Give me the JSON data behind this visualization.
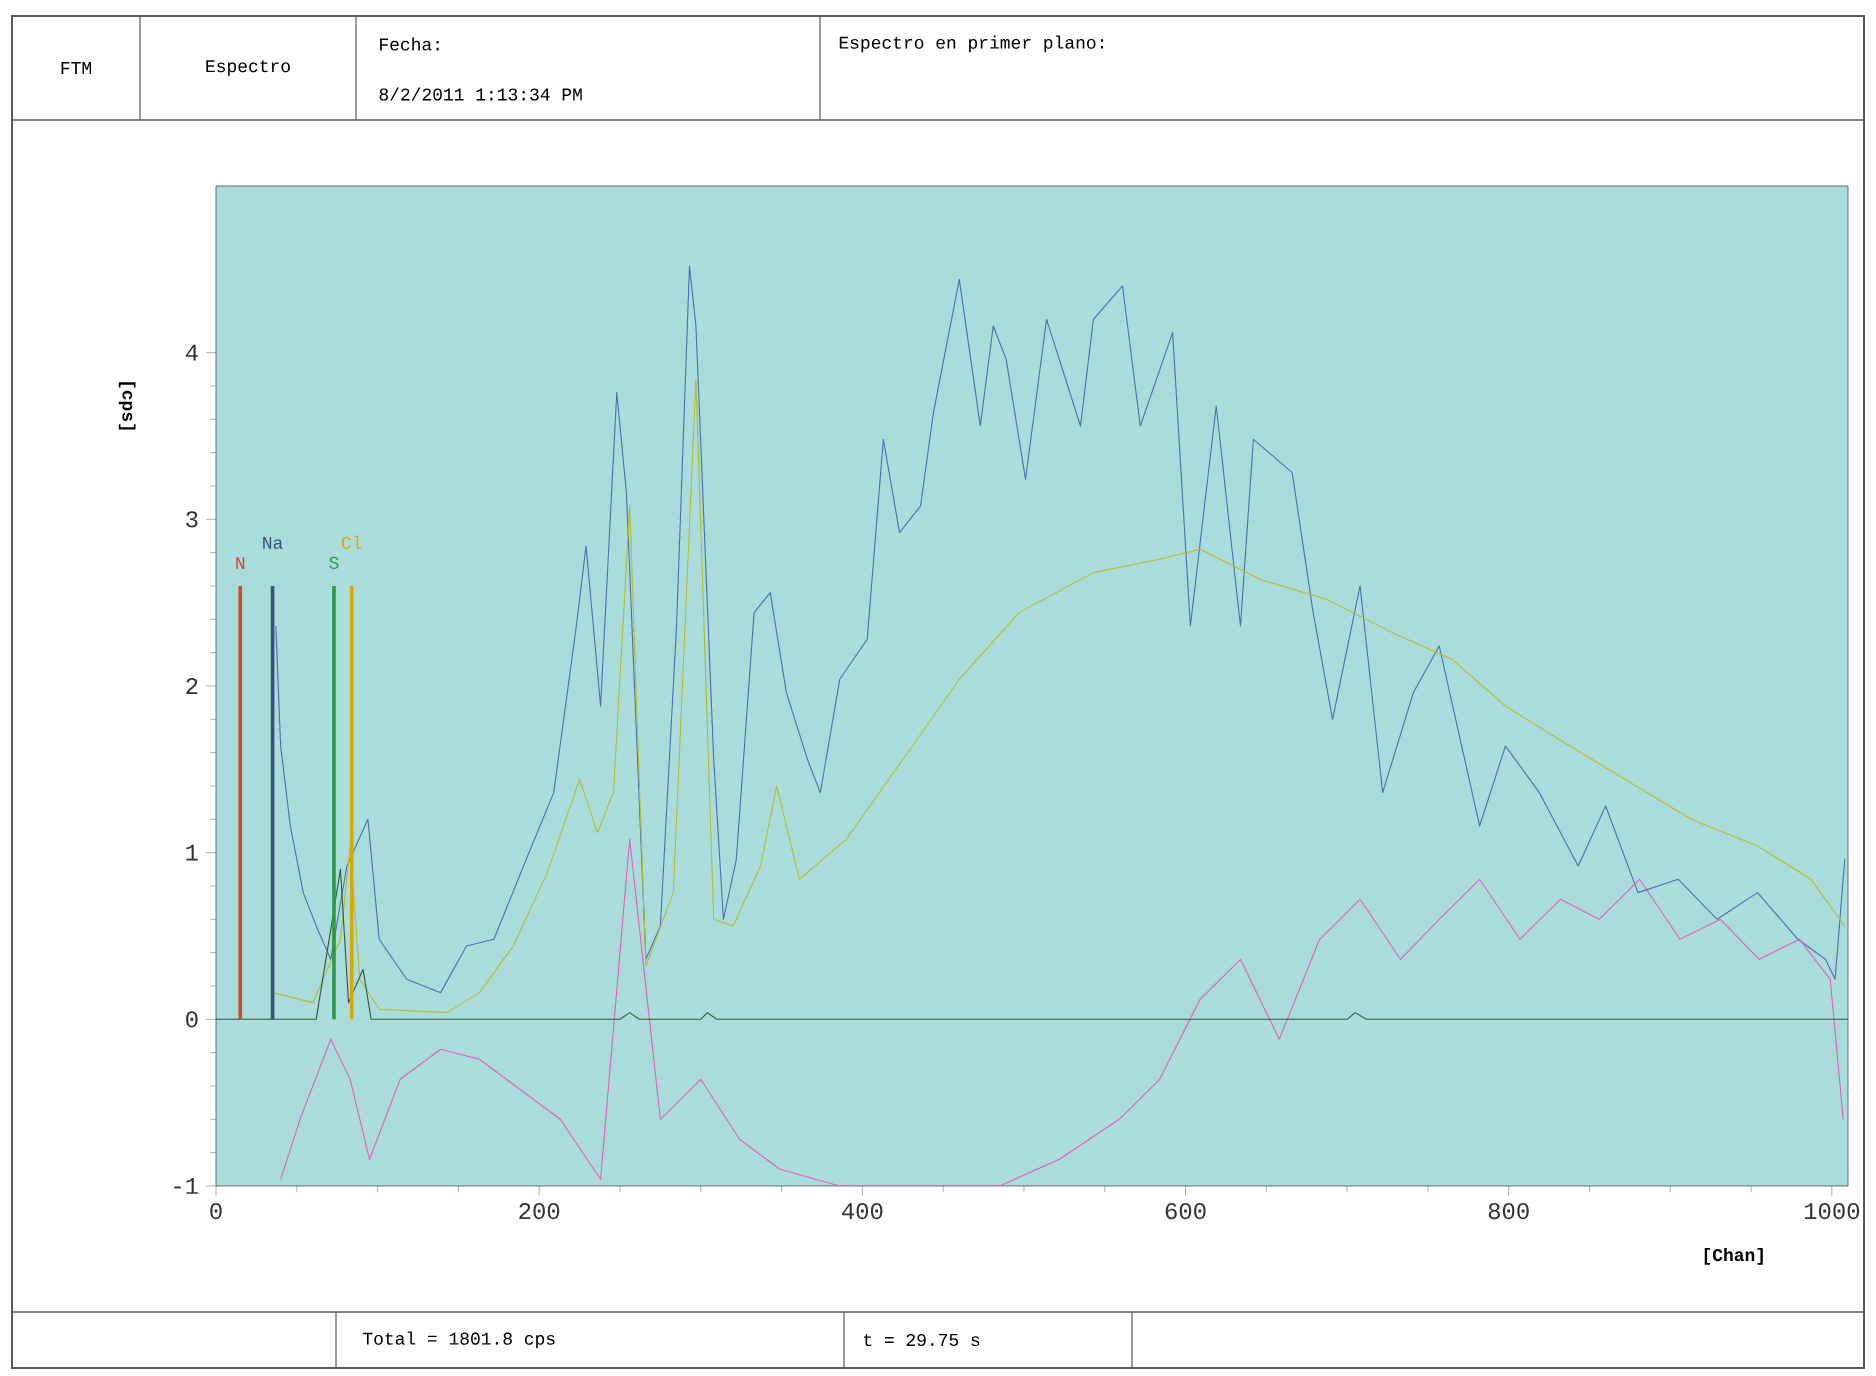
{
  "chart_data": {
    "type": "line",
    "xlabel": "[Chan]",
    "ylabel": "[cps]",
    "xlim": [
      0,
      1010
    ],
    "ylim": [
      -1,
      5
    ],
    "xticks": [
      0,
      200,
      400,
      600,
      800,
      1000
    ],
    "yticks": [
      -1,
      0,
      1,
      2,
      3,
      4
    ],
    "legend": false,
    "grid": false,
    "annotations": [
      "FTM",
      "Espectro",
      "Fecha:",
      "8/2/2011 1:13:34 PM",
      "Espectro en primer plano:",
      "Total = 1801.8 cps",
      "t = 29.75 s"
    ],
    "series": [
      {
        "color": "#4a6fb0",
        "x": [
          37,
          40,
          46,
          54,
          62,
          71,
          81,
          94,
          101,
          118,
          139,
          155,
          172,
          192,
          209,
          223,
          229,
          238,
          248,
          254,
          266,
          275,
          285,
          293,
          297,
          308,
          314,
          322,
          333,
          343,
          353,
          366,
          374,
          386,
          403,
          413,
          423,
          436,
          444,
          460,
          473,
          481,
          489,
          501,
          514,
          535,
          543,
          561,
          572,
          592,
          603,
          619,
          634,
          642,
          666,
          679,
          691,
          708,
          722,
          741,
          757,
          782,
          798,
          819,
          843,
          860,
          880,
          905,
          929,
          954,
          979,
          996,
          1002,
          1008
        ],
        "values": [
          2.36,
          1.64,
          1.16,
          0.76,
          0.56,
          0.36,
          0.92,
          1.2,
          0.48,
          0.24,
          0.16,
          0.44,
          0.48,
          0.96,
          1.36,
          2.36,
          2.84,
          1.88,
          3.76,
          3.16,
          0.36,
          0.56,
          2.36,
          4.52,
          4.16,
          1.56,
          0.6,
          0.96,
          2.44,
          2.56,
          1.96,
          1.56,
          1.36,
          2.04,
          2.28,
          3.48,
          2.92,
          3.08,
          3.64,
          4.44,
          3.56,
          4.16,
          3.96,
          3.24,
          4.2,
          3.56,
          4.2,
          4.4,
          3.56,
          4.12,
          2.36,
          3.68,
          2.36,
          3.48,
          3.28,
          2.44,
          1.8,
          2.6,
          1.36,
          1.96,
          2.24,
          1.16,
          1.64,
          1.36,
          0.92,
          1.28,
          0.76,
          0.84,
          0.6,
          0.76,
          0.48,
          0.36,
          0.24,
          0.96
        ]
      },
      {
        "color": "#b4bc2c",
        "x": [
          35,
          60,
          77,
          83,
          89,
          101,
          143,
          163,
          184,
          205,
          225,
          236,
          246,
          256,
          266,
          283,
          297,
          308,
          320,
          337,
          347,
          361,
          390,
          431,
          460,
          497,
          543,
          584,
          609,
          646,
          687,
          728,
          765,
          798,
          831,
          872,
          913,
          954,
          987,
          1008
        ],
        "values": [
          0.16,
          0.1,
          0.48,
          1.04,
          0.24,
          0.06,
          0.04,
          0.16,
          0.44,
          0.88,
          1.44,
          1.12,
          1.36,
          3.08,
          0.32,
          0.76,
          3.84,
          0.6,
          0.56,
          0.92,
          1.4,
          0.84,
          1.08,
          1.64,
          2.04,
          2.44,
          2.68,
          2.76,
          2.82,
          2.64,
          2.52,
          2.32,
          2.16,
          1.88,
          1.68,
          1.44,
          1.2,
          1.04,
          0.84,
          0.56
        ]
      },
      {
        "color": "#e060b8",
        "x": [
          40,
          52,
          71,
          83,
          95,
          114,
          139,
          163,
          188,
          213,
          238,
          256,
          275,
          300,
          324,
          349,
          386,
          485,
          522,
          559,
          584,
          609,
          634,
          658,
          683,
          708,
          733,
          757,
          782,
          807,
          832,
          856,
          881,
          906,
          931,
          955,
          980,
          999,
          1007
        ],
        "values": [
          -0.96,
          -0.6,
          -0.12,
          -0.36,
          -0.84,
          -0.36,
          -0.18,
          -0.24,
          -0.42,
          -0.6,
          -0.96,
          1.08,
          -0.6,
          -0.36,
          -0.72,
          -0.9,
          -1,
          -1,
          -0.84,
          -0.6,
          -0.36,
          0.12,
          0.36,
          -0.12,
          0.48,
          0.72,
          0.36,
          0.6,
          0.84,
          0.48,
          0.72,
          0.6,
          0.84,
          0.48,
          0.6,
          0.36,
          0.48,
          0.24,
          -0.6
        ]
      },
      {
        "color": "#2f5a3a",
        "x": [
          0,
          62,
          77,
          82,
          91,
          96,
          250,
          256,
          262,
          300,
          304,
          310,
          700,
          705,
          712,
          1010
        ],
        "values": [
          0,
          0,
          0.9,
          0.1,
          0.3,
          0,
          0,
          0.04,
          0,
          0,
          0.04,
          0,
          0,
          0.04,
          0,
          0
        ]
      },
      {
        "type": "bar",
        "name": "N",
        "color": "#d04a2a",
        "x": [
          15
        ],
        "values": [
          2.6
        ]
      },
      {
        "type": "bar",
        "name": "Na",
        "color": "#34527a",
        "x": [
          35
        ],
        "values": [
          2.6
        ]
      },
      {
        "type": "bar",
        "name": "S",
        "color": "#2a9a40",
        "x": [
          73
        ],
        "values": [
          2.6
        ]
      },
      {
        "type": "bar",
        "name": "Cl",
        "color": "#d8a800",
        "x": [
          84
        ],
        "values": [
          2.6
        ]
      }
    ]
  }
}
